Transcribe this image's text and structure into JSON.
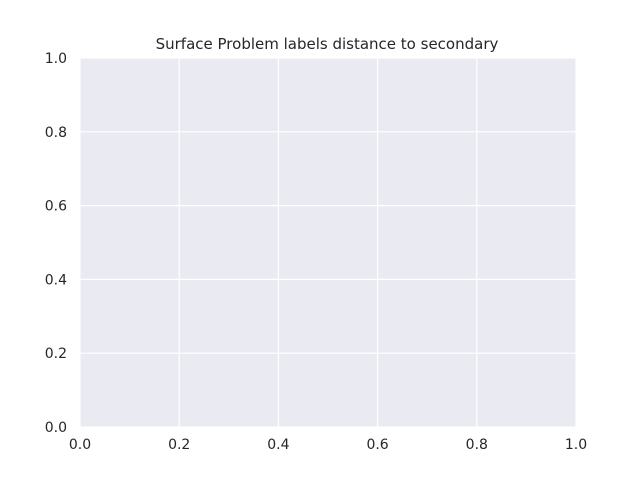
{
  "chart_data": {
    "type": "line",
    "title": "Surface Problem labels distance to secondary",
    "xlabel": "",
    "ylabel": "",
    "xlim": [
      0.0,
      1.0
    ],
    "ylim": [
      0.0,
      1.0
    ],
    "xticks": [
      "0.0",
      "0.2",
      "0.4",
      "0.6",
      "0.8",
      "1.0"
    ],
    "yticks": [
      "0.0",
      "0.2",
      "0.4",
      "0.6",
      "0.8",
      "1.0"
    ],
    "series": [],
    "grid": true,
    "legend": "none",
    "colors": {
      "plot_background": "#eaeaf2",
      "grid": "#ffffff",
      "text": "#262626"
    }
  }
}
